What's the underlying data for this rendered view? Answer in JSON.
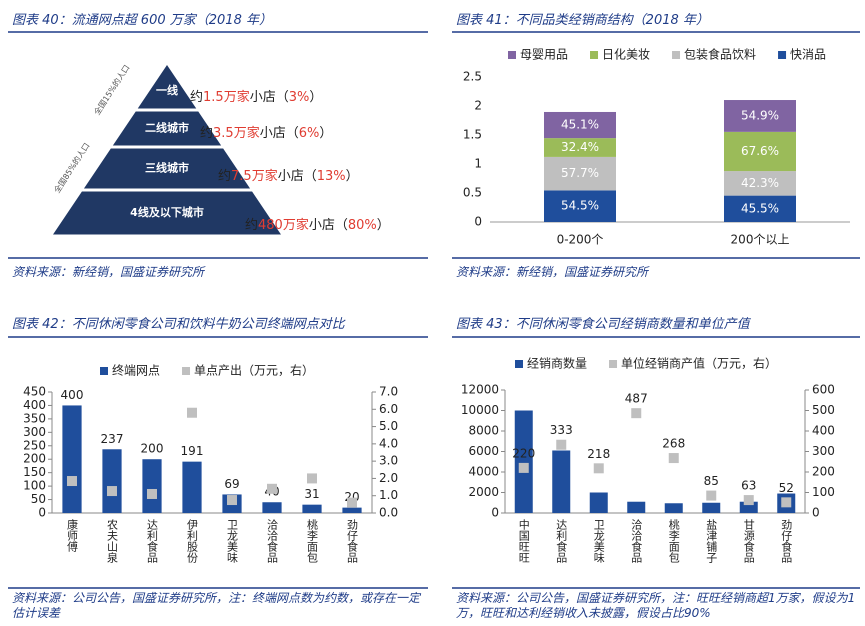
{
  "pyramid": {
    "title": "图表 40：流通网点超 600 万家（2018 年）",
    "levels": [
      {
        "label": "一线",
        "note_parts": [
          "约",
          "1.5万家",
          "小店（",
          "3%",
          "）"
        ]
      },
      {
        "label": "二线城市",
        "note_parts": [
          "约",
          "3.5万家",
          "小店（",
          "6%",
          "）"
        ]
      },
      {
        "label": "三线城市",
        "note_parts": [
          "约",
          "7.5万家",
          "小店（",
          "13%",
          "）"
        ]
      },
      {
        "label": "4线及以下城市",
        "note_parts": [
          "约",
          "480万家",
          "小店（",
          "80%",
          "）"
        ]
      }
    ],
    "side_labels": [
      "全国15%的人口",
      "全国85%的人口"
    ],
    "source": "资料来源：新经销，国盛证券研究所"
  },
  "chart_data": [
    {
      "type": "stacked_bar",
      "title": "图表 41：不同品类经销商结构（2018 年）",
      "categories": [
        "0-200个",
        "200个以上"
      ],
      "series": [
        {
          "name": "母婴用品",
          "color": "#8064a2",
          "values": [
            0.451,
            0.549
          ],
          "value_labels": [
            "45.1%",
            "54.9%"
          ]
        },
        {
          "name": "日化美妆",
          "color": "#9bbb59",
          "values": [
            0.324,
            0.676
          ],
          "value_labels": [
            "32.4%",
            "67.6%"
          ]
        },
        {
          "name": "包装食品饮料",
          "color": "#bfbfbf",
          "values": [
            0.577,
            0.423
          ],
          "value_labels": [
            "57.7%",
            "42.3%"
          ]
        },
        {
          "name": "快消品",
          "color": "#1f4e9c",
          "values": [
            0.545,
            0.455
          ],
          "value_labels": [
            "54.5%",
            "45.5%"
          ]
        }
      ],
      "ylim": [
        0,
        2.5
      ],
      "yticks": [
        0,
        0.5,
        1,
        1.5,
        2,
        2.5
      ],
      "source": "资料来源：新经销，国盛证券研究所"
    },
    {
      "type": "combo",
      "title": "图表 42：不同休闲零食公司和饮料牛奶公司终端网点对比",
      "categories": [
        "康师傅",
        "农夫山泉",
        "达利食品",
        "伊利股份",
        "卫龙美味",
        "洽洽食品",
        "桃李面包",
        "劲仔食品"
      ],
      "series": [
        {
          "name": "终端网点",
          "type": "bar",
          "color": "#1f4e9c",
          "labels": true,
          "values": [
            400,
            237,
            200,
            191,
            69,
            40,
            31,
            20
          ]
        },
        {
          "name": "单点产出（万元，右）",
          "type": "scatter",
          "axis": "y2",
          "color": "#bfbfbf",
          "values": [
            1.85,
            1.27,
            1.1,
            5.8,
            0.75,
            1.4,
            2.0,
            0.6
          ]
        }
      ],
      "ylim": [
        0,
        450
      ],
      "yticks": [
        0,
        50,
        100,
        150,
        200,
        250,
        300,
        350,
        400,
        450
      ],
      "y2lim": [
        0,
        7
      ],
      "y2ticks": [
        {
          "value": 0,
          "label": "0.0"
        },
        {
          "value": 1,
          "label": "1.0"
        },
        {
          "value": 2,
          "label": "2.0"
        },
        {
          "value": 3,
          "label": "3.0"
        },
        {
          "value": 4,
          "label": "4.0"
        },
        {
          "value": 5,
          "label": "5.0"
        },
        {
          "value": 6,
          "label": "6.0"
        },
        {
          "value": 7,
          "label": "7.0"
        }
      ],
      "source": "资料来源：公司公告，国盛证券研究所，注：终端网点数为约数，或存在一定估计误差"
    },
    {
      "type": "combo",
      "title": "图表 43：不同休闲零食公司经销商数量和单位产值",
      "categories": [
        "中国旺旺",
        "达利食品",
        "卫龙美味",
        "洽洽食品",
        "桃李面包",
        "盐津铺子",
        "甘源食品",
        "劲仔食品"
      ],
      "series": [
        {
          "name": "经销商数量",
          "type": "bar",
          "color": "#1f4e9c",
          "values": [
            10000,
            6100,
            2000,
            1100,
            950,
            1000,
            1100,
            1900
          ]
        },
        {
          "name": "单位经销商产值（万元，右）",
          "type": "scatter",
          "axis": "y2",
          "color": "#bfbfbf",
          "labels": true,
          "values": [
            220,
            333,
            218,
            487,
            268,
            85,
            63,
            52
          ]
        }
      ],
      "ylim": [
        0,
        12000
      ],
      "yticks": [
        0,
        2000,
        4000,
        6000,
        8000,
        10000,
        12000
      ],
      "y2lim": [
        0,
        600
      ],
      "y2ticks": [
        0,
        100,
        200,
        300,
        400,
        500,
        600
      ],
      "source": "资料来源：公司公告，国盛证券研究所，注：旺旺经销商超1万家，假设为1万，旺旺和达利经销收入未披露，假设占比90%"
    }
  ]
}
